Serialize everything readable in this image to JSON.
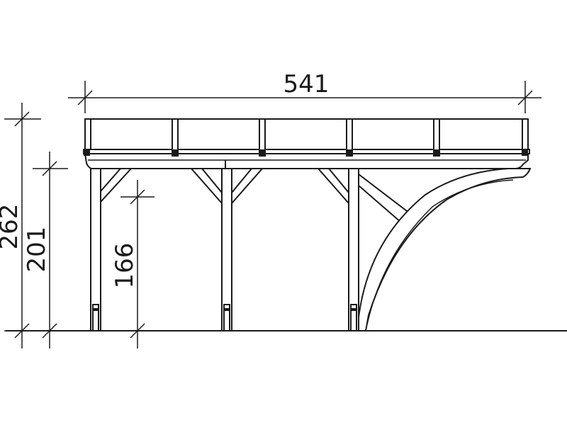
{
  "drawing": {
    "dimensions": {
      "overall_width": "541",
      "total_height": "262",
      "eave_height": "201",
      "clearance_height": "166"
    }
  }
}
